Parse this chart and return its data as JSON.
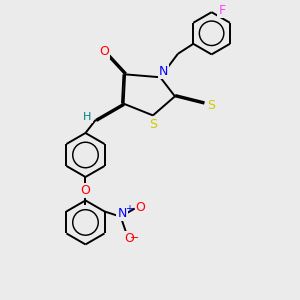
{
  "bg_color": "#ebebeb",
  "bond_color": "#000000",
  "line_width": 1.4,
  "dbo": 0.055,
  "atom_colors": {
    "O": "#ff0000",
    "N": "#0000ff",
    "S": "#cccc00",
    "F": "#ff44ff",
    "H": "#008080",
    "C": "#000000"
  },
  "font_size": 9
}
